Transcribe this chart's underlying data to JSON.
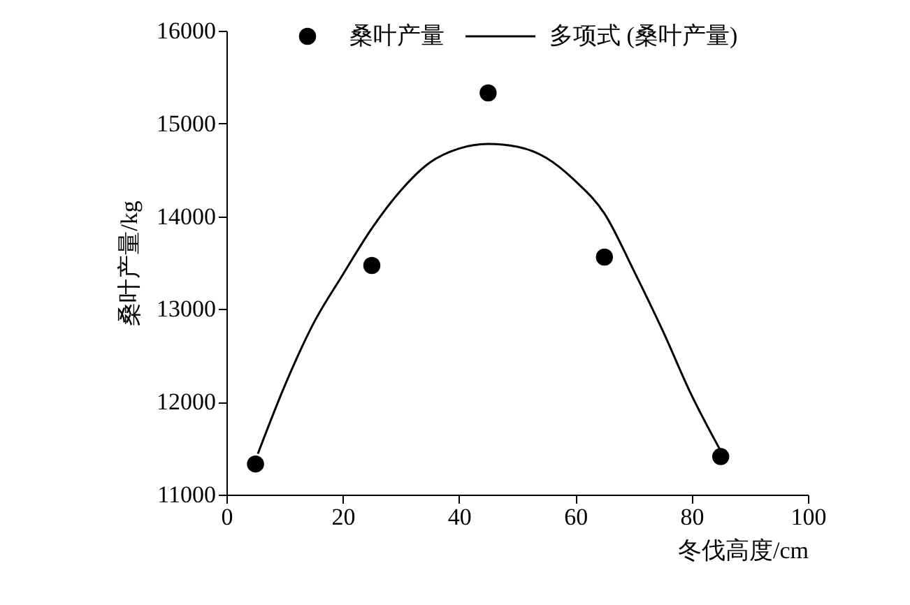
{
  "chart_data": {
    "type": "scatter",
    "xlabel": "冬伐高度/cm",
    "ylabel": "桑叶产量/kg",
    "legend": "top",
    "grid": false,
    "xlim": [
      0,
      100
    ],
    "xticks": [
      0,
      20,
      40,
      60,
      80,
      100
    ],
    "ylim": [
      11000,
      16000
    ],
    "yticks": [
      11000,
      12000,
      13000,
      14000,
      15000,
      16000
    ],
    "series": [
      {
        "name": "桑叶产量",
        "marker": "circle",
        "color": "#000000",
        "x": [
          5,
          25,
          45,
          65,
          85
        ],
        "values": [
          11330,
          13470,
          15330,
          13560,
          11410
        ]
      },
      {
        "name": "多项式 (桑叶产量)",
        "type": "line",
        "marker": "none",
        "color": "#000000",
        "x": [
          5.4,
          10,
          15,
          20,
          25,
          30,
          35,
          40,
          45,
          50,
          55,
          60,
          65,
          70,
          75,
          80,
          85
        ],
        "values": [
          11440,
          12170,
          12850,
          13370,
          13870,
          14280,
          14580,
          14730,
          14780,
          14750,
          14630,
          14380,
          14030,
          13420,
          12770,
          12070,
          11470
        ]
      }
    ]
  }
}
